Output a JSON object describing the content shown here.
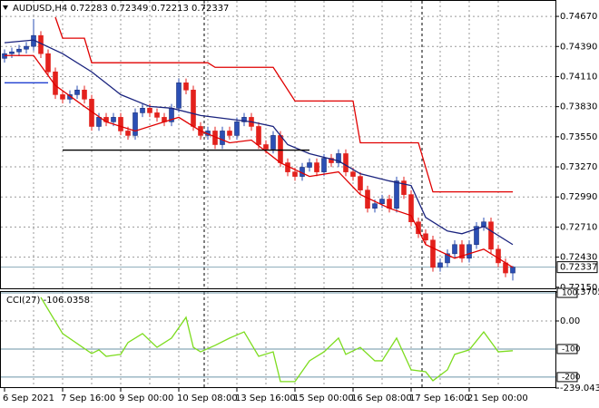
{
  "chart_data": [
    {
      "type": "candlestick",
      "title": "AUDUSD,H4  0.72283 0.72349 0.72213 0.72337",
      "categories": [
        "6 Sep 2021",
        null,
        null,
        null,
        null,
        null,
        null,
        null,
        "7 Sep 16:00",
        null,
        null,
        null,
        null,
        null,
        null,
        null,
        "9 Sep 00:00",
        null,
        null,
        null,
        null,
        null,
        null,
        null,
        "10 Sep 08:00",
        null,
        null,
        null,
        null,
        null,
        null,
        null,
        "13 Sep 16:00",
        null,
        null,
        null,
        null,
        null,
        null,
        null,
        "15 Sep 00:00",
        null,
        null,
        null,
        null,
        null,
        null,
        null,
        "16 Sep 08:00",
        null,
        null,
        null,
        null,
        null,
        null,
        null,
        "17 Sep 16:00",
        null,
        null,
        null,
        null,
        null,
        null,
        null,
        "21 Sep 00:00",
        null,
        null,
        null,
        null,
        null,
        null
      ],
      "open": [
        0.7428,
        0.74323,
        0.7434,
        0.74365,
        0.74391,
        0.74492,
        0.74323,
        0.74154,
        0.73942,
        0.739,
        0.73942,
        0.73985,
        0.739,
        0.73646,
        0.73731,
        0.73689,
        0.73731,
        0.73604,
        0.73562,
        0.73773,
        0.73816,
        0.73773,
        0.73731,
        0.73689,
        0.73816,
        0.74052,
        0.73985,
        0.73646,
        0.73562,
        0.73604,
        0.73477,
        0.73604,
        0.73562,
        0.73689,
        0.73731,
        0.73646,
        0.73477,
        0.73435,
        0.73562,
        0.73308,
        0.73223,
        0.73181,
        0.73266,
        0.73308,
        0.73223,
        0.7335,
        0.73308,
        0.73393,
        0.73223,
        0.73181,
        0.73054,
        0.72885,
        0.72927,
        0.7297,
        0.72885,
        0.73139,
        0.73012,
        0.72758,
        0.72648,
        0.72589,
        0.72335,
        0.72377,
        0.72462,
        0.72547,
        0.7242,
        0.72547,
        0.72716,
        0.72758,
        0.72504,
        0.72377,
        0.72283
      ],
      "high": [
        0.74363,
        0.7438,
        0.74405,
        0.74431,
        0.74645,
        0.74532,
        0.74363,
        0.74194,
        0.73982,
        0.73982,
        0.74025,
        0.74025,
        0.7394,
        0.73771,
        0.73771,
        0.73771,
        0.73771,
        0.73644,
        0.73813,
        0.73856,
        0.73856,
        0.73813,
        0.73771,
        0.73856,
        0.74092,
        0.74092,
        0.74025,
        0.73686,
        0.73644,
        0.73644,
        0.73644,
        0.73644,
        0.73729,
        0.73771,
        0.73771,
        0.73686,
        0.73517,
        0.73602,
        0.73602,
        0.73348,
        0.73263,
        0.73306,
        0.73348,
        0.73348,
        0.7339,
        0.7339,
        0.73433,
        0.73433,
        0.73263,
        0.73221,
        0.73094,
        0.72967,
        0.7301,
        0.7301,
        0.73179,
        0.73179,
        0.73052,
        0.72798,
        0.72688,
        0.72629,
        0.72417,
        0.72502,
        0.72587,
        0.72587,
        0.72587,
        0.72756,
        0.72798,
        0.72798,
        0.72544,
        0.72417,
        0.72349
      ],
      "low": [
        0.7424,
        0.74283,
        0.743,
        0.74325,
        0.74351,
        0.74283,
        0.74114,
        0.73902,
        0.7386,
        0.7386,
        0.73902,
        0.7386,
        0.73606,
        0.73606,
        0.73649,
        0.73649,
        0.73564,
        0.73522,
        0.73522,
        0.73733,
        0.73733,
        0.73691,
        0.73649,
        0.73649,
        0.73776,
        0.73945,
        0.73606,
        0.73522,
        0.73522,
        0.73437,
        0.73437,
        0.73522,
        0.73522,
        0.73649,
        0.73606,
        0.73437,
        0.73395,
        0.73395,
        0.73268,
        0.73183,
        0.73141,
        0.73141,
        0.73226,
        0.73183,
        0.73183,
        0.73268,
        0.73268,
        0.73183,
        0.73141,
        0.73014,
        0.72845,
        0.72845,
        0.72887,
        0.72845,
        0.72845,
        0.72972,
        0.72718,
        0.72608,
        0.72549,
        0.72295,
        0.72295,
        0.72337,
        0.72422,
        0.7238,
        0.7238,
        0.72507,
        0.72676,
        0.72464,
        0.72337,
        0.72243,
        0.72213
      ],
      "close": [
        0.74323,
        0.7434,
        0.74365,
        0.74391,
        0.74492,
        0.74323,
        0.74154,
        0.73942,
        0.739,
        0.73942,
        0.73985,
        0.739,
        0.73646,
        0.73731,
        0.73689,
        0.73731,
        0.73604,
        0.73562,
        0.73773,
        0.73816,
        0.73773,
        0.73731,
        0.73689,
        0.73816,
        0.74052,
        0.73985,
        0.73646,
        0.73562,
        0.73604,
        0.73477,
        0.73604,
        0.73562,
        0.73689,
        0.73731,
        0.73646,
        0.73477,
        0.73435,
        0.73562,
        0.73308,
        0.73223,
        0.73181,
        0.73266,
        0.73308,
        0.73223,
        0.7335,
        0.73308,
        0.73393,
        0.73223,
        0.73181,
        0.73054,
        0.72885,
        0.72927,
        0.7297,
        0.72885,
        0.73139,
        0.73012,
        0.72758,
        0.72648,
        0.72589,
        0.72335,
        0.72377,
        0.72462,
        0.72547,
        0.7242,
        0.72547,
        0.72716,
        0.72758,
        0.72504,
        0.72377,
        0.72283,
        0.72337
      ],
      "up_color": "#2b4fb4",
      "down_color": "#e3211c",
      "series": [
        {
          "color": "#1a237e",
          "x": [
            0,
            4,
            8,
            12,
            16,
            20,
            23,
            27,
            31,
            34,
            37,
            39,
            42,
            46,
            49,
            53,
            56,
            58,
            61,
            63,
            66,
            70
          ],
          "values": [
            0.74425,
            0.7445,
            0.74323,
            0.74154,
            0.73942,
            0.73832,
            0.73816,
            0.73748,
            0.73714,
            0.73689,
            0.73646,
            0.73477,
            0.73393,
            0.73325,
            0.73206,
            0.73139,
            0.73096,
            0.728,
            0.72673,
            0.72648,
            0.72716,
            0.72547
          ]
        },
        {
          "color": "#e00000",
          "x": [
            0,
            4,
            7,
            11,
            14,
            18,
            22,
            24,
            27,
            31,
            34,
            38,
            42,
            46,
            49,
            53,
            56,
            58,
            62,
            66,
            70
          ],
          "values": [
            0.74306,
            0.74306,
            0.74027,
            0.73832,
            0.73689,
            0.73604,
            0.73689,
            0.73731,
            0.73604,
            0.73494,
            0.73519,
            0.73308,
            0.73181,
            0.73223,
            0.73012,
            0.72885,
            0.72817,
            0.72547,
            0.7242,
            0.72504,
            0.72335
          ]
        },
        {
          "color": "#e00000",
          "x": [
            7,
            8,
            11,
            12,
            28,
            29,
            37,
            40,
            48,
            49,
            57,
            59,
            70
          ],
          "values": [
            0.74662,
            0.74467,
            0.74467,
            0.74239,
            0.74239,
            0.74196,
            0.74196,
            0.73883,
            0.73883,
            0.73494,
            0.73494,
            0.73037,
            0.73037
          ]
        },
        {
          "color": "#000000",
          "x": [
            8,
            42
          ],
          "values": [
            0.73426,
            0.73426
          ]
        },
        {
          "color": "#1f3fd0",
          "x": [
            0,
            6
          ],
          "values": [
            0.74052,
            0.74052
          ]
        }
      ],
      "current_price": 0.72337,
      "ylim": [
        0.7214,
        0.74814
      ],
      "yticks": [
        {
          "value": 0.7467,
          "label": "0.74670"
        },
        {
          "value": 0.7439,
          "label": "0.74390"
        },
        {
          "value": 0.7411,
          "label": "0.74110"
        },
        {
          "value": 0.7383,
          "label": "0.73830"
        },
        {
          "value": 0.7355,
          "label": "0.73550"
        },
        {
          "value": 0.7327,
          "label": "0.73270"
        },
        {
          "value": 0.7299,
          "label": "0.72990"
        },
        {
          "value": 0.7271,
          "label": "0.72710"
        },
        {
          "value": 0.7243,
          "label": "0.72430"
        },
        {
          "value": 0.7215,
          "label": "0.72150"
        }
      ],
      "grid": true
    },
    {
      "type": "line",
      "title": "CCI(27) -106.0358",
      "series": [
        {
          "color": "#7ddc1f",
          "x": [
            5,
            8,
            12,
            13,
            14,
            16,
            17,
            19,
            21,
            23,
            25,
            26,
            27,
            29,
            31,
            33,
            35,
            37,
            38,
            40,
            42,
            44,
            46,
            47,
            49,
            51,
            52,
            54,
            56,
            58,
            59,
            61,
            62,
            64,
            66,
            68,
            70
          ],
          "values": [
            84,
            -45,
            -116,
            -103,
            -126,
            -119,
            -77,
            -45,
            -94,
            -61,
            13,
            -94,
            -110,
            -87,
            -61,
            -39,
            -126,
            -110,
            -216,
            -216,
            -142,
            -110,
            -61,
            -119,
            -94,
            -142,
            -142,
            -61,
            -174,
            -181,
            -213,
            -174,
            -119,
            -103,
            -39,
            -110,
            -106.0358
          ]
        }
      ],
      "levels": [
        100,
        -100,
        -200
      ],
      "ylim": [
        -239.043,
        103.3705
      ],
      "yticks": [
        {
          "value": 103.3705,
          "label": "103.3705"
        },
        {
          "value": 0,
          "label": "0.00"
        },
        {
          "value": -239.043,
          "label": "-239.043"
        }
      ],
      "grid": true
    }
  ]
}
